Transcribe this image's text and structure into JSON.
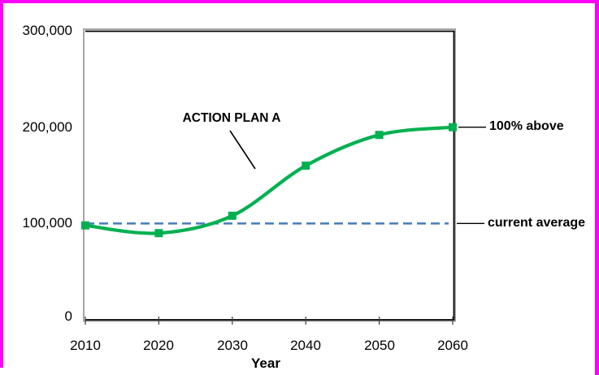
{
  "window": {
    "border_color": "#FF00FF",
    "background": "#FFFFFF"
  },
  "chart_data": {
    "type": "line",
    "title": "",
    "xlabel": "Year",
    "ylabel": "",
    "xlim": [
      2010,
      2060
    ],
    "ylim": [
      0,
      300000
    ],
    "grid": false,
    "legend": "none",
    "x": [
      2010,
      2020,
      2030,
      2040,
      2050,
      2060
    ],
    "xtick_labels": [
      "2010",
      "2020",
      "2030",
      "2040",
      "2050",
      "2060"
    ],
    "ytick_values": [
      0,
      100000,
      200000,
      300000
    ],
    "ytick_labels": [
      "0",
      "100,000",
      "200,000",
      "300,000"
    ],
    "series": [
      {
        "name": "ACTION PLAN A",
        "values": [
          98000,
          90000,
          108000,
          160000,
          192000,
          200000
        ],
        "color": "#00B050",
        "marker": "square",
        "line_style": "solid",
        "smooth": true
      }
    ],
    "reference_line": {
      "value": 100000,
      "color": "#4F81BD",
      "line_style": "dashed",
      "label": "current average"
    },
    "annotations": [
      {
        "id": "action_plan",
        "text": "ACTION PLAN A"
      },
      {
        "id": "above",
        "text": "100% above",
        "points_to_value": 200000
      },
      {
        "id": "current_average",
        "text": "current average",
        "points_to_value": 100000
      }
    ],
    "axis_colors": {
      "frame": "#000000",
      "shadow": "#A6A6A6",
      "tick": "#404040"
    }
  }
}
